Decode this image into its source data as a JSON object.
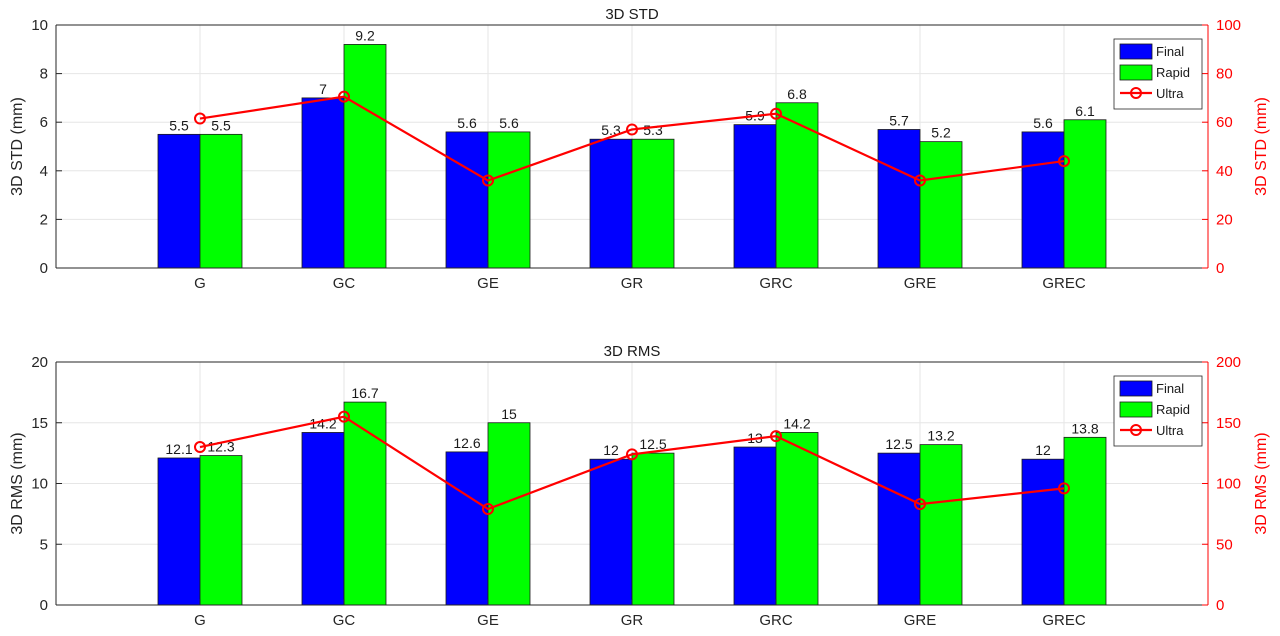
{
  "chart_data": [
    {
      "type": "bar",
      "title": "3D STD",
      "categories": [
        "G",
        "GC",
        "GE",
        "GR",
        "GRC",
        "GRE",
        "GREC"
      ],
      "ylabel": "3D STD (mm)",
      "ylim": [
        0,
        10
      ],
      "yticks": [
        0,
        2,
        4,
        6,
        8,
        10
      ],
      "ylabel_right": "3D STD (mm)",
      "ylim_right": [
        0,
        100
      ],
      "yticks_right": [
        0,
        20,
        40,
        60,
        80,
        100
      ],
      "grid": true,
      "legend_position": "top-right",
      "series": [
        {
          "name": "Final",
          "axis": "left",
          "kind": "bar",
          "color": "#0000ff",
          "values": [
            5.5,
            7,
            5.6,
            5.3,
            5.9,
            5.7,
            5.6
          ],
          "value_labels": [
            "5.5",
            "7",
            "5.6",
            "5.3",
            "5.9",
            "5.7",
            "5.6"
          ]
        },
        {
          "name": "Rapid",
          "axis": "left",
          "kind": "bar",
          "color": "#00ff00",
          "values": [
            5.5,
            9.2,
            5.6,
            5.3,
            6.8,
            5.2,
            6.1
          ],
          "value_labels": [
            "5.5",
            "9.2",
            "5.6",
            "5.3",
            "6.8",
            "5.2",
            "6.1"
          ]
        },
        {
          "name": "Ultra",
          "axis": "right",
          "kind": "line",
          "color": "#ff0000",
          "values": [
            61.5,
            70.5,
            36,
            57,
            63.5,
            36,
            44
          ]
        }
      ]
    },
    {
      "type": "bar",
      "title": "3D RMS",
      "categories": [
        "G",
        "GC",
        "GE",
        "GR",
        "GRC",
        "GRE",
        "GREC"
      ],
      "ylabel": "3D RMS (mm)",
      "ylim": [
        0,
        20
      ],
      "yticks": [
        0,
        5,
        10,
        15,
        20
      ],
      "ylabel_right": "3D RMS (mm)",
      "ylim_right": [
        0,
        200
      ],
      "yticks_right": [
        0,
        50,
        100,
        150,
        200
      ],
      "grid": true,
      "legend_position": "top-right",
      "series": [
        {
          "name": "Final",
          "axis": "left",
          "kind": "bar",
          "color": "#0000ff",
          "values": [
            12.1,
            14.2,
            12.6,
            12,
            13,
            12.5,
            12
          ],
          "value_labels": [
            "12.1",
            "14.2",
            "12.6",
            "12",
            "13",
            "12.5",
            "12"
          ]
        },
        {
          "name": "Rapid",
          "axis": "left",
          "kind": "bar",
          "color": "#00ff00",
          "values": [
            12.3,
            16.7,
            15,
            12.5,
            14.2,
            13.2,
            13.8
          ],
          "value_labels": [
            "12.3",
            "16.7",
            "15",
            "12.5",
            "14.2",
            "13.2",
            "13.8"
          ]
        },
        {
          "name": "Ultra",
          "axis": "right",
          "kind": "line",
          "color": "#ff0000",
          "values": [
            130,
            155,
            79,
            124,
            139,
            83,
            96
          ]
        }
      ]
    }
  ]
}
